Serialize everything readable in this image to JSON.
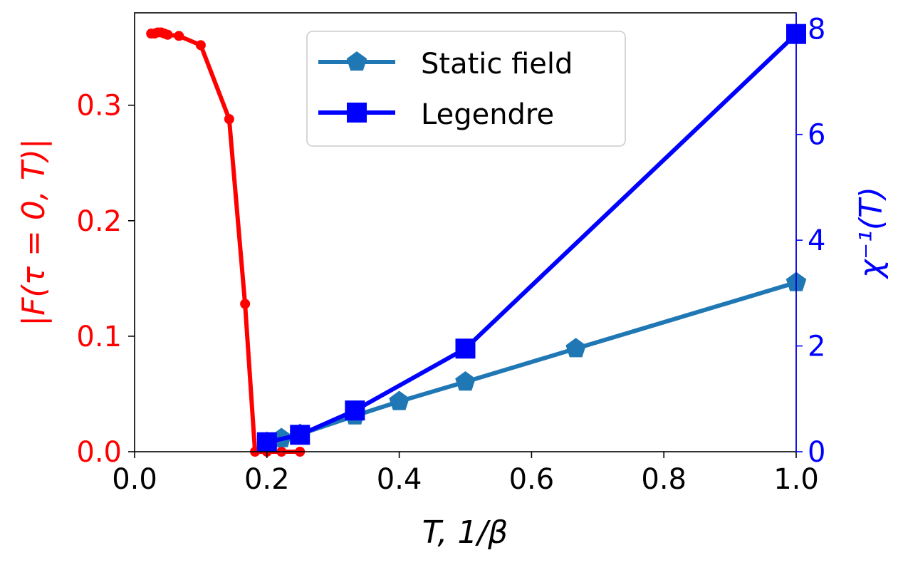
{
  "chart_data": {
    "type": "line",
    "x_axis": {
      "label": "T,  1/β",
      "range": [
        0,
        1
      ],
      "ticks": [
        0.0,
        0.2,
        0.4,
        0.6,
        0.8,
        1.0
      ],
      "tick_labels": [
        "0.0",
        "0.2",
        "0.4",
        "0.6",
        "0.8",
        "1.0"
      ]
    },
    "y_left": {
      "label": "|F(τ = 0, T)|",
      "color": "#ff0000",
      "range": [
        0,
        0.38
      ],
      "ticks": [
        0.0,
        0.1,
        0.2,
        0.3
      ],
      "tick_labels": [
        "0.0",
        "0.1",
        "0.2",
        "0.3"
      ]
    },
    "y_right": {
      "label": "χ⁻¹(T)",
      "color": "#0000ff",
      "range": [
        0,
        8.3
      ],
      "ticks": [
        0,
        2,
        4,
        6,
        8
      ],
      "tick_labels": [
        "0",
        "2",
        "4",
        "6",
        "8"
      ]
    },
    "series": [
      {
        "name": "|F(τ = 0, T)|",
        "axis": "left",
        "color": "#ff0000",
        "marker": "circle",
        "in_legend": false,
        "x": [
          0.025,
          0.03,
          0.035,
          0.04,
          0.045,
          0.05,
          0.067,
          0.1,
          0.143,
          0.167,
          0.182,
          0.2,
          0.222,
          0.25
        ],
        "y": [
          0.362,
          0.362,
          0.363,
          0.363,
          0.362,
          0.361,
          0.36,
          0.352,
          0.288,
          0.128,
          0.0,
          0.0,
          0.0,
          0.0
        ]
      },
      {
        "name": "Static field",
        "axis": "right",
        "color": "#1f77b4",
        "marker": "pentagon",
        "in_legend": true,
        "x": [
          0.2,
          0.222,
          0.25,
          0.333,
          0.4,
          0.5,
          0.667,
          1.0
        ],
        "y": [
          0.18,
          0.25,
          0.33,
          0.68,
          0.95,
          1.32,
          1.95,
          3.2
        ]
      },
      {
        "name": "Legendre",
        "axis": "right",
        "color": "#0000ff",
        "marker": "square",
        "in_legend": true,
        "x": [
          0.2,
          0.25,
          0.333,
          0.5,
          1.0
        ],
        "y": [
          0.18,
          0.32,
          0.78,
          1.95,
          7.9
        ]
      }
    ],
    "legend": {
      "position": "top-center",
      "entries": [
        "Static field",
        "Legendre"
      ]
    }
  }
}
